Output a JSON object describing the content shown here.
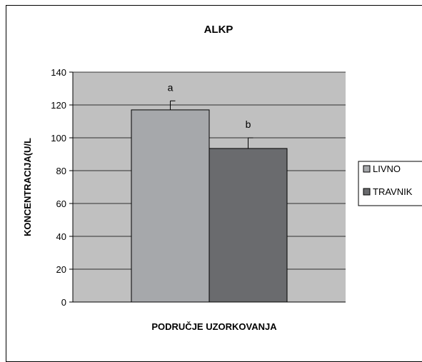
{
  "chart_data": {
    "type": "bar",
    "title": "ALKP",
    "xlabel": "PODRUČJE UZORKOVANJA",
    "ylabel": "KONCENTRACIJA(U/L",
    "ylim": [
      0,
      140
    ],
    "yticks": [
      0,
      20,
      40,
      60,
      80,
      100,
      120,
      140
    ],
    "grid": true,
    "legend_position": "right",
    "plot_background": "#c0c0c0",
    "series": [
      {
        "name": "LIVNO",
        "value": 117,
        "error": 5.5,
        "color": "#a6a8ab",
        "annotation": "a"
      },
      {
        "name": "TRAVNIK",
        "value": 93.5,
        "error": 6.5,
        "color": "#6a6b6e",
        "annotation": "b"
      }
    ]
  }
}
